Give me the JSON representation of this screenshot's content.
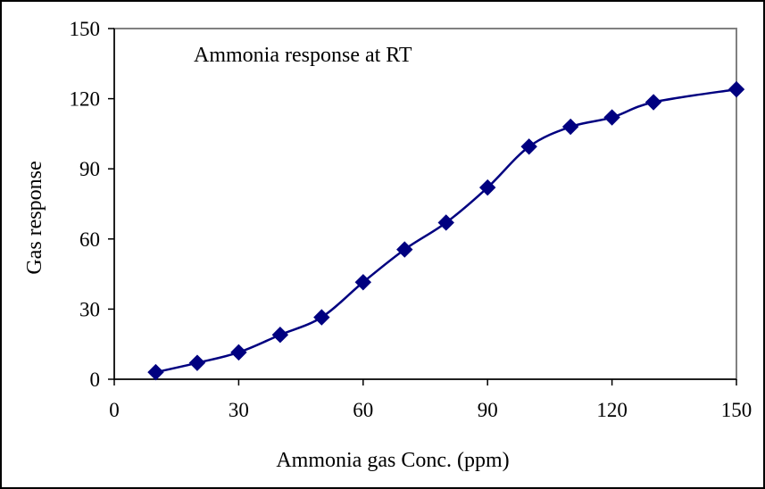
{
  "chart_data": {
    "type": "line",
    "title": "Ammonia response at RT",
    "xlabel": "Ammonia gas Conc. (ppm)",
    "ylabel": "Gas response",
    "xlim": [
      0,
      150
    ],
    "ylim": [
      0,
      150
    ],
    "xticks": [
      0,
      30,
      60,
      90,
      120,
      150
    ],
    "yticks": [
      0,
      30,
      60,
      90,
      120,
      150
    ],
    "grid": false,
    "legend": "none",
    "series": [
      {
        "marker": "diamond",
        "color": "#000080",
        "x": [
          10,
          20,
          30,
          40,
          50,
          60,
          70,
          80,
          90,
          100,
          110,
          120,
          130,
          150
        ],
        "y": [
          3,
          7,
          11.5,
          19,
          26.5,
          41.5,
          55.5,
          67,
          82,
          99.5,
          108,
          112,
          118.5,
          124
        ]
      }
    ]
  }
}
